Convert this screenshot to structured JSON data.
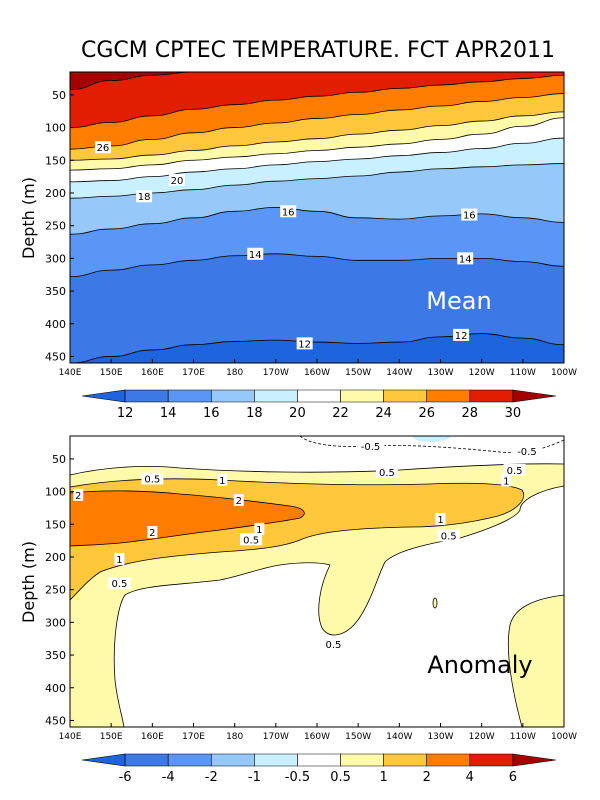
{
  "title": "CGCM CPTEC TEMPERATURE. FCT APR2011",
  "colors": {
    "frame": "#000000",
    "mean_label": "#ffffff",
    "anom_label": "#000000"
  },
  "chart_data": [
    {
      "type": "contour",
      "panel": "Mean",
      "panel_label": "Mean",
      "ylabel": "Depth (m)",
      "xlabel": "",
      "x_ticks": [
        "140E",
        "150E",
        "160E",
        "170E",
        "180",
        "170W",
        "160W",
        "150W",
        "140W",
        "130W",
        "120W",
        "110W",
        "100W"
      ],
      "x_range_deg_east": [
        140,
        260
      ],
      "y_ticks": [
        50,
        100,
        150,
        200,
        250,
        300,
        350,
        400,
        450
      ],
      "ylim": [
        460,
        15
      ],
      "levels": [
        12,
        14,
        16,
        18,
        20,
        22,
        24,
        26,
        28,
        30
      ],
      "level_colors": [
        "#1e64dc",
        "#3c78e6",
        "#5a96f5",
        "#96c8fa",
        "#c8f0ff",
        "#ffffff",
        "#fffaaa",
        "#ffc83c",
        "#ff7d00",
        "#e11e00",
        "#a50000"
      ],
      "isotherms": [
        {
          "value": 30,
          "depths": [
            42,
            28,
            20,
            15,
            15,
            15,
            15,
            15,
            15,
            15,
            15,
            15,
            15
          ]
        },
        {
          "value": 28,
          "depths": [
            100,
            92,
            82,
            72,
            65,
            58,
            52,
            46,
            40,
            35,
            30,
            25,
            20
          ]
        },
        {
          "value": 26,
          "depths": [
            133,
            128,
            118,
            108,
            100,
            93,
            86,
            80,
            73,
            67,
            60,
            54,
            48
          ]
        },
        {
          "value": 24,
          "depths": [
            150,
            148,
            142,
            135,
            128,
            122,
            117,
            110,
            104,
            97,
            90,
            82,
            76
          ]
        },
        {
          "value": 22,
          "depths": [
            165,
            163,
            157,
            150,
            145,
            140,
            135,
            130,
            125,
            118,
            110,
            98,
            85
          ]
        },
        {
          "value": 20,
          "depths": [
            183,
            181,
            175,
            168,
            163,
            157,
            152,
            148,
            143,
            138,
            132,
            124,
            116
          ]
        },
        {
          "value": 18,
          "depths": [
            208,
            205,
            200,
            195,
            188,
            182,
            178,
            174,
            168,
            163,
            160,
            157,
            155
          ]
        },
        {
          "value": 16,
          "depths": [
            263,
            255,
            247,
            238,
            228,
            222,
            228,
            238,
            240,
            235,
            232,
            238,
            245
          ]
        },
        {
          "value": 14,
          "depths": [
            328,
            318,
            310,
            303,
            296,
            293,
            297,
            303,
            303,
            300,
            300,
            305,
            312
          ]
        },
        {
          "value": 12,
          "depths": [
            460,
            450,
            440,
            432,
            427,
            425,
            428,
            430,
            428,
            420,
            415,
            422,
            432
          ]
        }
      ],
      "contour_labels": [
        {
          "text": "26",
          "lon": 148,
          "depth": 130
        },
        {
          "text": "20",
          "lon": 166,
          "depth": 180
        },
        {
          "text": "18",
          "lon": 158,
          "depth": 205
        },
        {
          "text": "16",
          "lon": 193,
          "depth": 228
        },
        {
          "text": "16",
          "lon": 237,
          "depth": 233
        },
        {
          "text": "14",
          "lon": 185,
          "depth": 293
        },
        {
          "text": "14",
          "lon": 236,
          "depth": 300
        },
        {
          "text": "12",
          "lon": 197,
          "depth": 430
        },
        {
          "text": "12",
          "lon": 235,
          "depth": 417
        }
      ],
      "colorbar_labels": [
        "12",
        "14",
        "16",
        "18",
        "20",
        "22",
        "24",
        "26",
        "28",
        "30"
      ]
    },
    {
      "type": "contour",
      "panel": "Anomaly",
      "panel_label": "Anomaly",
      "ylabel": "Depth (m)",
      "xlabel": "",
      "x_ticks": [
        "140E",
        "150E",
        "160E",
        "170E",
        "180",
        "170W",
        "160W",
        "150W",
        "140W",
        "130W",
        "120W",
        "110W",
        "100W"
      ],
      "x_range_deg_east": [
        140,
        260
      ],
      "y_ticks": [
        50,
        100,
        150,
        200,
        250,
        300,
        350,
        400,
        450
      ],
      "ylim": [
        460,
        15
      ],
      "levels": [
        -6,
        -4,
        -2,
        -1,
        -0.5,
        0.5,
        1,
        2,
        4,
        6
      ],
      "level_colors": [
        "#1e64dc",
        "#3c78e6",
        "#5a96f5",
        "#96c8fa",
        "#c8f0ff",
        "#ffffff",
        "#fffaaa",
        "#ffc83c",
        "#ff7d00",
        "#e11e00",
        "#a50000"
      ],
      "contour_labels": [
        {
          "text": "-0.5",
          "lon": 213,
          "depth": 30
        },
        {
          "text": "-0.5",
          "lon": 251,
          "depth": 38
        },
        {
          "text": "0.5",
          "lon": 160,
          "depth": 80
        },
        {
          "text": "0.5",
          "lon": 217,
          "depth": 70
        },
        {
          "text": "0.5",
          "lon": 248,
          "depth": 67
        },
        {
          "text": "1",
          "lon": 177,
          "depth": 82
        },
        {
          "text": "1",
          "lon": 246,
          "depth": 83
        },
        {
          "text": "2",
          "lon": 142,
          "depth": 105
        },
        {
          "text": "2",
          "lon": 181,
          "depth": 113
        },
        {
          "text": "2",
          "lon": 160,
          "depth": 162
        },
        {
          "text": "1",
          "lon": 186,
          "depth": 157
        },
        {
          "text": "1",
          "lon": 230,
          "depth": 142
        },
        {
          "text": "0.5",
          "lon": 184,
          "depth": 173
        },
        {
          "text": "0.5",
          "lon": 232,
          "depth": 167
        },
        {
          "text": "1",
          "lon": 152,
          "depth": 203
        },
        {
          "text": "0.5",
          "lon": 152,
          "depth": 240
        },
        {
          "text": "0.5",
          "lon": 204,
          "depth": 333
        }
      ],
      "colorbar_labels": [
        "-6",
        "-4",
        "-2",
        "-1",
        "-0.5",
        "0.5",
        "1",
        "2",
        "4",
        "6"
      ]
    }
  ]
}
